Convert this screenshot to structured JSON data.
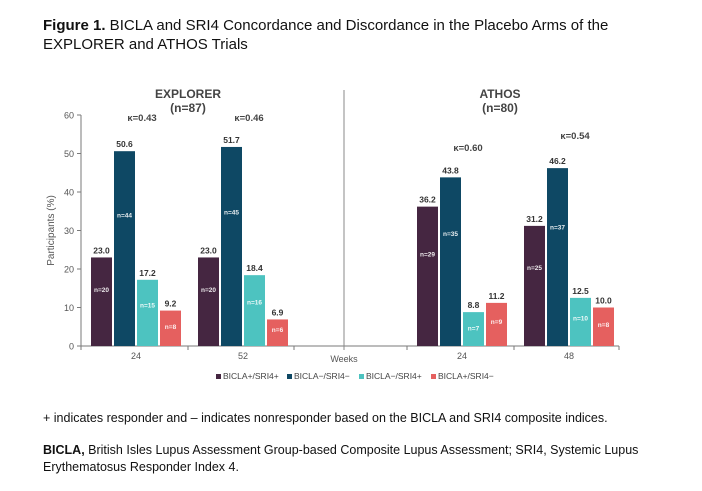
{
  "figure": {
    "label": "Figure 1.",
    "title": " BICLA and SRI4 Concordance and Discordance in the Placebo Arms of the EXPLORER and ATHOS Trials"
  },
  "footnotes": {
    "line1": "+ indicates responder and – indicates nonresponder based on the BICLA and SRI4 composite indices.",
    "abbrev_bold": "BICLA,",
    "abbrev_rest": " British Isles Lupus Assessment Group-based Composite Lupus Assessment; SRI4, Systemic Lupus Erythematosus Responder Index 4."
  },
  "chart_data": {
    "type": "bar",
    "title": "",
    "xlabel": "Weeks",
    "ylabel": "Participants (%)",
    "ylim": [
      0,
      60
    ],
    "yticks": [
      0,
      10,
      20,
      30,
      40,
      50,
      60
    ],
    "grid": false,
    "legend_position": "bottom",
    "colors": {
      "BICLA+/SRI4+": "#452641",
      "BICLA−/SRI4−": "#0e4864",
      "BICLA−/SRI4+": "#4dc3c0",
      "BICLA+/SRI4−": "#e5605f"
    },
    "series_names": [
      "BICLA+/SRI4+",
      "BICLA−/SRI4−",
      "BICLA−/SRI4+",
      "BICLA+/SRI4−"
    ],
    "panels": [
      {
        "name": "EXPLORER",
        "n_label": "(n=87)",
        "groups": [
          {
            "week": "24",
            "kappa": "κ=0.43",
            "values": [
              23.0,
              50.6,
              17.2,
              9.2
            ],
            "value_labels": [
              "23.0",
              "50.6",
              "17.2",
              "9.2"
            ],
            "n": [
              "n=20",
              "n=44",
              "n=15",
              "n=8"
            ]
          },
          {
            "week": "52",
            "kappa": "κ=0.46",
            "values": [
              23.0,
              51.7,
              18.4,
              6.9
            ],
            "value_labels": [
              "23.0",
              "51.7",
              "18.4",
              "6.9"
            ],
            "n": [
              "n=20",
              "n=45",
              "n=16",
              "n=6"
            ]
          }
        ]
      },
      {
        "name": "ATHOS",
        "n_label": "(n=80)",
        "groups": [
          {
            "week": "24",
            "kappa": "κ=0.60",
            "values": [
              36.2,
              43.8,
              8.8,
              11.2
            ],
            "value_labels": [
              "36.2",
              "43.8",
              "8.8",
              "11.2"
            ],
            "n": [
              "n=29",
              "n=35",
              "n=7",
              "n=9"
            ]
          },
          {
            "week": "48",
            "kappa": "κ=0.54",
            "values": [
              31.2,
              46.2,
              12.5,
              10.0
            ],
            "value_labels": [
              "31.2",
              "46.2",
              "12.5",
              "10.0"
            ],
            "n": [
              "n=25",
              "n=37",
              "n=10",
              "n=8"
            ]
          }
        ]
      }
    ]
  }
}
